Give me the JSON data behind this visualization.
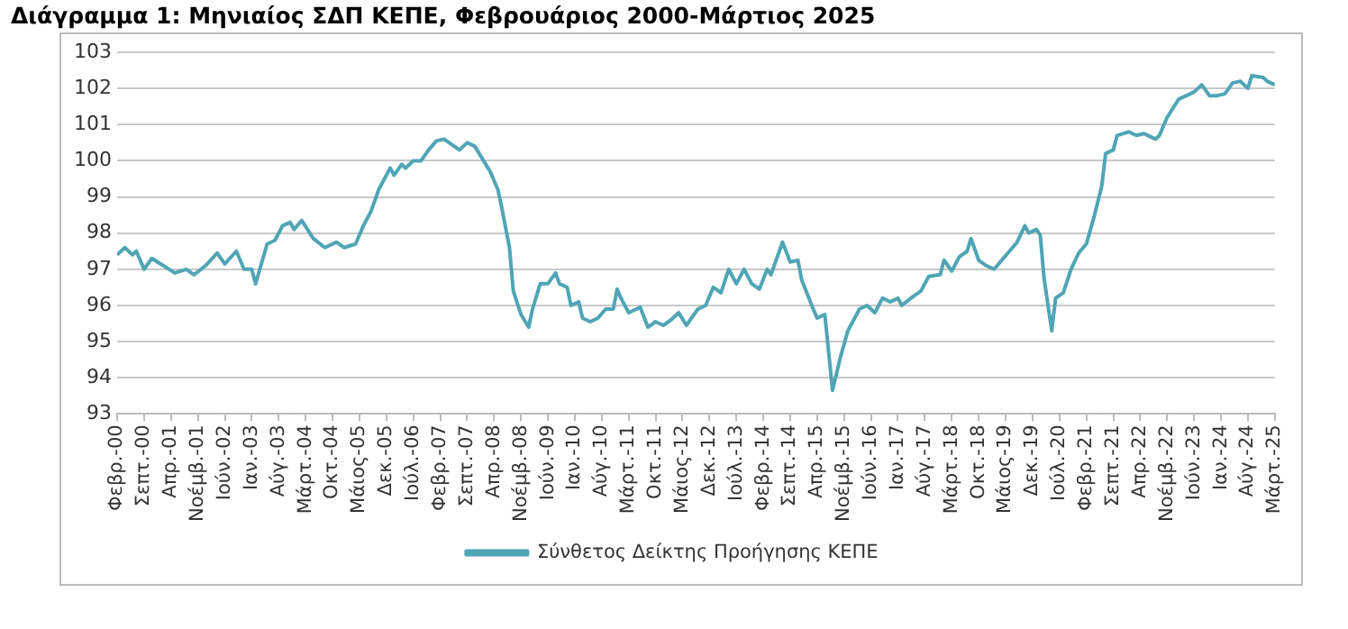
{
  "chart_data": {
    "type": "line",
    "title": "Διάγραμμα 1: Μηνιαίος ΣΔΠ ΚΕΠΕ, Φεβρουάριος 2000-Μάρτιος 2025",
    "x": [
      "2000-02",
      "2000-04",
      "2000-06",
      "2000-07",
      "2000-09",
      "2000-11",
      "2001-02",
      "2001-05",
      "2001-08",
      "2001-10",
      "2002-01",
      "2002-04",
      "2002-06",
      "2002-09",
      "2002-11",
      "2003-01",
      "2003-02",
      "2003-05",
      "2003-07",
      "2003-09",
      "2003-11",
      "2003-12",
      "2004-02",
      "2004-05",
      "2004-08",
      "2004-11",
      "2005-01",
      "2005-04",
      "2005-06",
      "2005-08",
      "2005-10",
      "2006-01",
      "2006-02",
      "2006-04",
      "2006-05",
      "2006-07",
      "2006-09",
      "2006-11",
      "2007-01",
      "2007-03",
      "2007-05",
      "2007-07",
      "2007-09",
      "2007-11",
      "2008-01",
      "2008-03",
      "2008-05",
      "2008-06",
      "2008-08",
      "2008-09",
      "2008-11",
      "2009-01",
      "2009-02",
      "2009-04",
      "2009-06",
      "2009-08",
      "2009-09",
      "2009-11",
      "2009-12",
      "2010-02",
      "2010-03",
      "2010-05",
      "2010-07",
      "2010-09",
      "2010-11",
      "2010-12",
      "2011-01",
      "2011-03",
      "2011-06",
      "2011-08",
      "2011-10",
      "2011-12",
      "2012-02",
      "2012-04",
      "2012-06",
      "2012-09",
      "2012-11",
      "2013-01",
      "2013-03",
      "2013-05",
      "2013-07",
      "2013-09",
      "2013-11",
      "2014-01",
      "2014-03",
      "2014-04",
      "2014-07",
      "2014-09",
      "2014-11",
      "2014-12",
      "2015-03",
      "2015-04",
      "2015-06",
      "2015-08",
      "2015-10",
      "2015-12",
      "2016-03",
      "2016-05",
      "2016-07",
      "2016-09",
      "2016-11",
      "2017-01",
      "2017-02",
      "2017-05",
      "2017-07",
      "2017-09",
      "2017-12",
      "2018-01",
      "2018-03",
      "2018-05",
      "2018-07",
      "2018-08",
      "2018-10",
      "2018-12",
      "2019-02",
      "2019-04",
      "2019-06",
      "2019-08",
      "2019-10",
      "2019-11",
      "2020-01",
      "2020-02",
      "2020-03",
      "2020-05",
      "2020-06",
      "2020-08",
      "2020-10",
      "2020-12",
      "2021-02",
      "2021-04",
      "2021-06",
      "2021-07",
      "2021-09",
      "2021-10",
      "2022-01",
      "2022-03",
      "2022-05",
      "2022-08",
      "2022-09",
      "2022-11",
      "2023-02",
      "2023-04",
      "2023-06",
      "2023-08",
      "2023-10",
      "2023-12",
      "2024-02",
      "2024-04",
      "2024-06",
      "2024-08",
      "2024-09",
      "2024-12",
      "2025-01",
      "2025-03"
    ],
    "series": [
      {
        "name": "Σύνθετος Δείκτης Προήγησης ΚΕΠΕ",
        "color": "#4fa5b5",
        "values": [
          97.4,
          97.6,
          97.4,
          97.5,
          97.0,
          97.3,
          97.1,
          96.9,
          97.0,
          96.85,
          97.1,
          97.45,
          97.15,
          97.5,
          97.0,
          97.0,
          96.6,
          97.7,
          97.8,
          98.2,
          98.3,
          98.1,
          98.35,
          97.85,
          97.6,
          97.75,
          97.6,
          97.7,
          98.2,
          98.6,
          99.2,
          99.8,
          99.6,
          99.9,
          99.8,
          100.0,
          100.0,
          100.3,
          100.55,
          100.6,
          100.45,
          100.3,
          100.5,
          100.4,
          100.05,
          99.7,
          99.2,
          98.7,
          97.6,
          96.4,
          95.75,
          95.4,
          95.9,
          96.6,
          96.6,
          96.9,
          96.6,
          96.5,
          96.0,
          96.1,
          95.65,
          95.55,
          95.65,
          95.9,
          95.9,
          96.45,
          96.2,
          95.8,
          95.95,
          95.4,
          95.55,
          95.45,
          95.6,
          95.8,
          95.45,
          95.9,
          96.0,
          96.5,
          96.35,
          97.0,
          96.6,
          97.0,
          96.6,
          96.45,
          97.0,
          96.85,
          97.75,
          97.2,
          97.25,
          96.7,
          95.9,
          95.65,
          95.75,
          93.65,
          94.55,
          95.3,
          95.9,
          96.0,
          95.8,
          96.2,
          96.1,
          96.2,
          96.0,
          96.25,
          96.4,
          96.8,
          96.85,
          97.25,
          96.95,
          97.35,
          97.5,
          97.85,
          97.25,
          97.1,
          97.0,
          97.25,
          97.5,
          97.75,
          98.2,
          98.0,
          98.1,
          97.95,
          96.75,
          95.3,
          96.2,
          96.35,
          97.0,
          97.45,
          97.7,
          98.45,
          99.3,
          100.2,
          100.3,
          100.7,
          100.8,
          100.7,
          100.75,
          100.6,
          100.7,
          101.2,
          101.7,
          101.8,
          101.9,
          102.1,
          101.8,
          101.8,
          101.85,
          102.15,
          102.2,
          102.0,
          102.35,
          102.3,
          102.2,
          102.1
        ]
      }
    ],
    "xlim": [
      "2000-02",
      "2025-03"
    ],
    "xticks": [
      {
        "value": "2000-02",
        "label": "Φεβρ.-00"
      },
      {
        "value": "2000-09",
        "label": "Σεπτ.-00"
      },
      {
        "value": "2001-04",
        "label": "Απρ.-01"
      },
      {
        "value": "2001-11",
        "label": "Νοέμβ.-01"
      },
      {
        "value": "2002-06",
        "label": "Ιούν.-02"
      },
      {
        "value": "2003-01",
        "label": "Ιαν.-03"
      },
      {
        "value": "2003-08",
        "label": "Αύγ.-03"
      },
      {
        "value": "2004-03",
        "label": "Μάρτ.-04"
      },
      {
        "value": "2004-10",
        "label": "Οκτ.-04"
      },
      {
        "value": "2005-05",
        "label": "Μάιος-05"
      },
      {
        "value": "2005-12",
        "label": "Δεκ.-05"
      },
      {
        "value": "2006-07",
        "label": "Ιούλ.-06"
      },
      {
        "value": "2007-02",
        "label": "Φεβρ.-07"
      },
      {
        "value": "2007-09",
        "label": "Σεπτ.-07"
      },
      {
        "value": "2008-04",
        "label": "Απρ.-08"
      },
      {
        "value": "2008-11",
        "label": "Νοέμβ.-08"
      },
      {
        "value": "2009-06",
        "label": "Ιούν.-09"
      },
      {
        "value": "2010-01",
        "label": "Ιαν.-10"
      },
      {
        "value": "2010-08",
        "label": "Αύγ.-10"
      },
      {
        "value": "2011-03",
        "label": "Μάρτ.-11"
      },
      {
        "value": "2011-10",
        "label": "Οκτ.-11"
      },
      {
        "value": "2012-05",
        "label": "Μάιος-12"
      },
      {
        "value": "2012-12",
        "label": "Δεκ.-12"
      },
      {
        "value": "2013-07",
        "label": "Ιούλ.-13"
      },
      {
        "value": "2014-02",
        "label": "Φεβρ.-14"
      },
      {
        "value": "2014-09",
        "label": "Σεπτ.-14"
      },
      {
        "value": "2015-04",
        "label": "Απρ.-15"
      },
      {
        "value": "2015-11",
        "label": "Νοέμβ.-15"
      },
      {
        "value": "2016-06",
        "label": "Ιούν.-16"
      },
      {
        "value": "2017-01",
        "label": "Ιαν.-17"
      },
      {
        "value": "2017-08",
        "label": "Αύγ.-17"
      },
      {
        "value": "2018-03",
        "label": "Μάρτ.-18"
      },
      {
        "value": "2018-10",
        "label": "Οκτ.-18"
      },
      {
        "value": "2019-05",
        "label": "Μάιος-19"
      },
      {
        "value": "2019-12",
        "label": "Δεκ.-19"
      },
      {
        "value": "2020-07",
        "label": "Ιούλ.-20"
      },
      {
        "value": "2021-02",
        "label": "Φεβρ.-21"
      },
      {
        "value": "2021-09",
        "label": "Σεπτ.-21"
      },
      {
        "value": "2022-04",
        "label": "Απρ.-22"
      },
      {
        "value": "2022-11",
        "label": "Νοέμβ.-22"
      },
      {
        "value": "2023-06",
        "label": "Ιούν.-23"
      },
      {
        "value": "2024-01",
        "label": "Ιαν.-24"
      },
      {
        "value": "2024-08",
        "label": "Αύγ.-24"
      },
      {
        "value": "2025-03",
        "label": "Μάρτ.-25"
      }
    ],
    "ylim": [
      93,
      103
    ],
    "yticks": [
      93,
      94,
      95,
      96,
      97,
      98,
      99,
      100,
      101,
      102,
      103
    ],
    "grid": "y",
    "legend": "bottom"
  }
}
